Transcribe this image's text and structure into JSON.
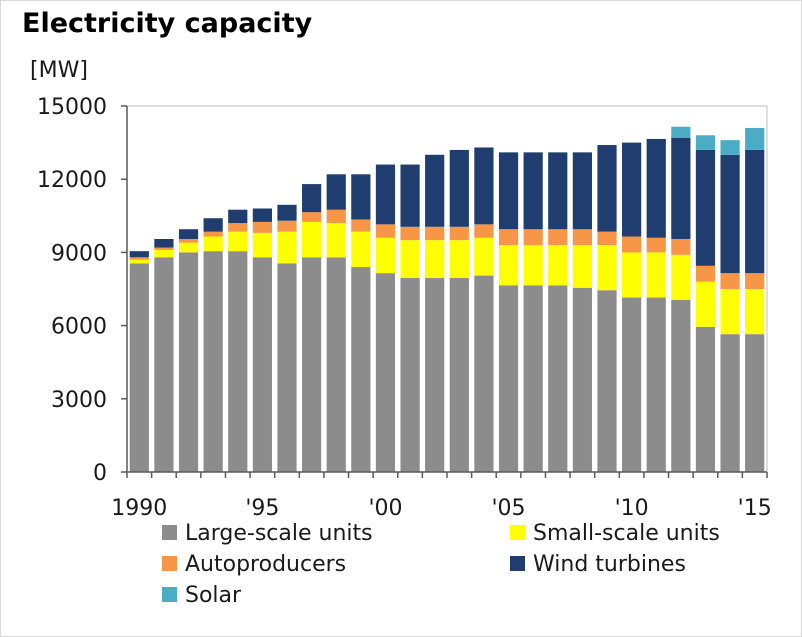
{
  "chart_data": {
    "type": "bar",
    "stacked": true,
    "title": "Electricity capacity",
    "ylabel": "[MW]",
    "xlabel": "",
    "ylim": [
      0,
      15000
    ],
    "yticks": [
      0,
      3000,
      6000,
      9000,
      12000,
      15000
    ],
    "x": [
      1990,
      1991,
      1992,
      1993,
      1994,
      1995,
      1996,
      1997,
      1998,
      1999,
      2000,
      2001,
      2002,
      2003,
      2004,
      2005,
      2006,
      2007,
      2008,
      2009,
      2010,
      2011,
      2012,
      2013,
      2014,
      2015
    ],
    "xtick_labels": [
      {
        "year": 1990,
        "label": "1990"
      },
      {
        "year": 1995,
        "label": "'95"
      },
      {
        "year": 2000,
        "label": "'00"
      },
      {
        "year": 2005,
        "label": "'05"
      },
      {
        "year": 2010,
        "label": "'10"
      },
      {
        "year": 2015,
        "label": "'15"
      }
    ],
    "grid": false,
    "legend_position": "bottom",
    "series": [
      {
        "name": "Large-scale units",
        "color": "#8c8c8c",
        "values": [
          8550,
          8800,
          9000,
          9050,
          9050,
          8800,
          8550,
          8800,
          8800,
          8400,
          8150,
          7950,
          7950,
          7950,
          8050,
          7650,
          7650,
          7650,
          7550,
          7450,
          7150,
          7150,
          7050,
          5950,
          5650,
          5650
        ]
      },
      {
        "name": "Small-scale units",
        "color": "#ffff00",
        "values": [
          150,
          300,
          400,
          600,
          800,
          1000,
          1300,
          1450,
          1400,
          1450,
          1450,
          1550,
          1550,
          1550,
          1550,
          1650,
          1650,
          1650,
          1750,
          1850,
          1850,
          1850,
          1850,
          1850,
          1850,
          1850
        ]
      },
      {
        "name": "Autoproducers",
        "color": "#f79646",
        "values": [
          100,
          100,
          150,
          200,
          350,
          450,
          450,
          400,
          550,
          500,
          550,
          550,
          550,
          550,
          550,
          650,
          650,
          650,
          650,
          550,
          650,
          600,
          650,
          650,
          650,
          650
        ]
      },
      {
        "name": "Wind turbines",
        "color": "#1f3d6e",
        "values": [
          250,
          350,
          400,
          550,
          550,
          550,
          650,
          1150,
          1450,
          1850,
          2450,
          2550,
          2950,
          3150,
          3150,
          3150,
          3150,
          3150,
          3150,
          3550,
          3850,
          4050,
          4150,
          4750,
          4850,
          5050
        ]
      },
      {
        "name": "Solar",
        "color": "#4bacc6",
        "values": [
          0,
          0,
          0,
          0,
          0,
          0,
          0,
          0,
          0,
          0,
          0,
          0,
          0,
          0,
          0,
          0,
          0,
          0,
          0,
          0,
          0,
          0,
          450,
          600,
          600,
          900
        ]
      }
    ]
  }
}
